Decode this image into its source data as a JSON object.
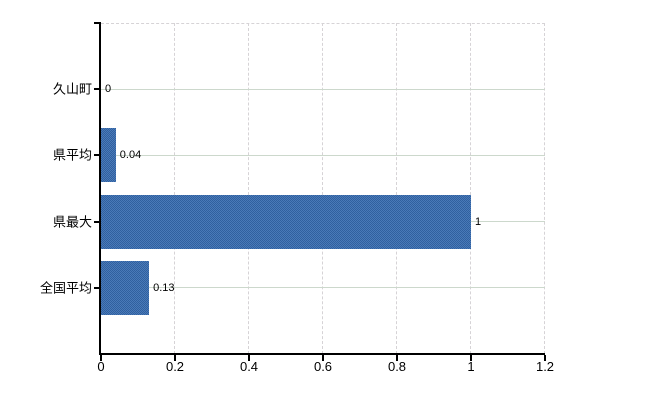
{
  "chart_data": {
    "type": "bar",
    "orientation": "horizontal",
    "categories": [
      "久山町",
      "県平均",
      "県最大",
      "全国平均"
    ],
    "values": [
      0,
      0.04,
      1,
      0.13
    ],
    "value_labels": [
      "0",
      "0.04",
      "1",
      "0.13"
    ],
    "xlim": [
      0,
      1.2
    ],
    "xticks": [
      0,
      0.2,
      0.4,
      0.6,
      0.8,
      1,
      1.2
    ],
    "xtick_labels": [
      "0",
      "0.2",
      "0.4",
      "0.6",
      "0.8",
      "1",
      "1.2"
    ],
    "xlabel": "",
    "ylabel": "",
    "grid": "on",
    "legend": "none"
  },
  "colors": {
    "background": "#ffffff",
    "bar_fill": "#3d6dab",
    "bar_fill_light": "#4a7ab8",
    "bar_fill_dark": "#30609f",
    "axis_line": "#000000",
    "h_gridline": "#ccd8cc",
    "v_gridline": "#d6d3d6",
    "label_text": "#000000"
  }
}
